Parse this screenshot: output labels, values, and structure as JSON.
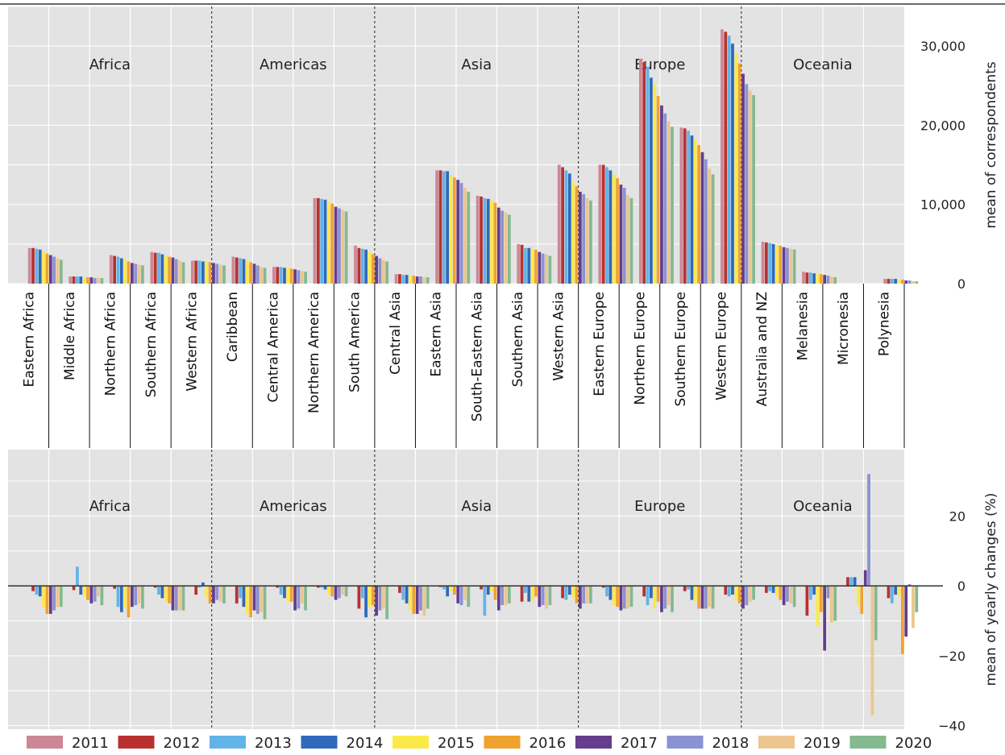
{
  "chart_data": [
    {
      "type": "bar",
      "title": "",
      "ylabel": "mean of correspondents",
      "ylim": [
        0,
        35000
      ],
      "yticks": [
        0,
        10000,
        20000,
        30000
      ],
      "ytick_labels": [
        "0",
        "10,000",
        "20,000",
        "30,000"
      ],
      "grid": true,
      "region_labels": [
        "Africa",
        "Americas",
        "Asia",
        "Europe",
        "Oceania"
      ],
      "categories": [
        "Eastern Africa",
        "Middle Africa",
        "Northern Africa",
        "Southern Africa",
        "Western Africa",
        "Caribbean",
        "Central America",
        "Northern America",
        "South America",
        "Central Asia",
        "Eastern Asia",
        "South-Eastern Asia",
        "Southern Asia",
        "Western Asia",
        "Eastern Europe",
        "Northern Europe",
        "Southern Europe",
        "Western Europe",
        "Australia and NZ",
        "Melanesia",
        "Micronesia",
        "Polynesia"
      ],
      "series": [
        {
          "name": "2011",
          "values": [
            4500,
            900,
            3600,
            4000,
            2900,
            3400,
            2100,
            10800,
            4800,
            1200,
            14300,
            11100,
            5000,
            15000,
            15000,
            28400,
            19700,
            32100,
            5300,
            1500,
            0,
            600
          ]
        },
        {
          "name": "2012",
          "values": [
            4500,
            900,
            3500,
            3900,
            2900,
            3300,
            2100,
            10800,
            4500,
            1200,
            14300,
            11000,
            4900,
            14700,
            15000,
            28000,
            19600,
            31800,
            5200,
            1400,
            0,
            600
          ]
        },
        {
          "name": "2013",
          "values": [
            4400,
            900,
            3400,
            3900,
            2900,
            3200,
            2100,
            10700,
            4400,
            1100,
            14200,
            10800,
            4500,
            14300,
            14700,
            27400,
            19300,
            31300,
            5100,
            1400,
            0,
            600
          ]
        },
        {
          "name": "2014",
          "values": [
            4300,
            900,
            3200,
            3700,
            2800,
            3100,
            2000,
            10600,
            4300,
            1100,
            14200,
            10700,
            4500,
            13900,
            14300,
            26000,
            18700,
            30300,
            5000,
            1300,
            0,
            600
          ]
        },
        {
          "name": "2015",
          "values": [
            4000,
            800,
            3000,
            3500,
            2800,
            2900,
            2000,
            10300,
            4000,
            1000,
            13700,
            10500,
            4400,
            12800,
            13800,
            25200,
            18100,
            29100,
            4900,
            1200,
            0,
            500
          ]
        },
        {
          "name": "2016",
          "values": [
            3800,
            800,
            2800,
            3400,
            2700,
            2700,
            1900,
            10100,
            3700,
            1000,
            13400,
            10200,
            4300,
            12300,
            13300,
            23700,
            17500,
            27800,
            4800,
            1200,
            0,
            500
          ]
        },
        {
          "name": "2017",
          "values": [
            3600,
            800,
            2600,
            3300,
            2600,
            2500,
            1800,
            9700,
            3500,
            900,
            13100,
            9600,
            4000,
            11600,
            12500,
            22500,
            16600,
            26500,
            4600,
            1100,
            0,
            400
          ]
        },
        {
          "name": "2018",
          "values": [
            3400,
            700,
            2500,
            3100,
            2500,
            2300,
            1700,
            9500,
            3200,
            900,
            12700,
            9200,
            3800,
            11300,
            12100,
            21500,
            15700,
            25200,
            4500,
            1000,
            0,
            400
          ]
        },
        {
          "name": "2019",
          "values": [
            3200,
            700,
            2400,
            2900,
            2400,
            2100,
            1600,
            9300,
            3000,
            800,
            12100,
            9000,
            3700,
            10800,
            11200,
            20500,
            14500,
            24400,
            4400,
            900,
            0,
            300
          ]
        },
        {
          "name": "2020",
          "values": [
            3000,
            700,
            2300,
            2700,
            2300,
            2000,
            1500,
            9100,
            2800,
            800,
            11600,
            8700,
            3500,
            10500,
            10800,
            19800,
            13800,
            23800,
            4300,
            800,
            0,
            300
          ]
        }
      ]
    },
    {
      "type": "bar",
      "title": "",
      "ylabel": "mean of yearly changes (%)",
      "ylim": [
        -41,
        39
      ],
      "yticks": [
        -40,
        -20,
        0,
        20
      ],
      "ytick_labels": [
        "−40",
        "−20",
        "0",
        "20"
      ],
      "grid": true,
      "region_labels": [
        "Africa",
        "Americas",
        "Asia",
        "Europe",
        "Oceania"
      ],
      "categories": [
        "Eastern Africa",
        "Middle Africa",
        "Northern Africa",
        "Southern Africa",
        "Western Africa",
        "Caribbean",
        "Central America",
        "Northern America",
        "South America",
        "Central Asia",
        "Eastern Asia",
        "South-Eastern Asia",
        "Southern Asia",
        "Western Asia",
        "Eastern Europe",
        "Northern Europe",
        "Southern Europe",
        "Western Europe",
        "Australia and NZ",
        "Melanesia",
        "Micronesia",
        "Polynesia"
      ],
      "series": [
        {
          "name": "2012",
          "values": [
            -1.5,
            -1.2,
            -0.8,
            -0.5,
            -2.5,
            -5,
            -0.5,
            -0.5,
            -6.5,
            -2,
            -0.3,
            -1,
            -4.5,
            -3.5,
            -0.5,
            -3,
            -1.5,
            -2.5,
            -2,
            -8.5,
            2.5,
            -3.5
          ]
        },
        {
          "name": "2013",
          "values": [
            -2.5,
            5.5,
            -6,
            -2.5,
            -0.5,
            -3.5,
            -2.5,
            -0.5,
            -3.5,
            -4,
            -1,
            -8.5,
            -2,
            -4,
            -3,
            -5.5,
            -1,
            -3,
            -1.5,
            -4,
            2.5,
            -5
          ]
        },
        {
          "name": "2014",
          "values": [
            -3,
            -2.5,
            -7.5,
            -3.5,
            1,
            -6,
            -3.5,
            -1,
            -9,
            -5,
            -3,
            -2.5,
            -4.5,
            -2.5,
            -4,
            -3.5,
            -4,
            -2.5,
            -2,
            -2.5,
            2.5,
            -2.5
          ]
        },
        {
          "name": "2015",
          "values": [
            -6,
            -3,
            -6.5,
            -4.5,
            -3.5,
            -8,
            -4.5,
            -2.5,
            -6,
            -7,
            -1.5,
            -1.5,
            -4.5,
            -3.5,
            -5.5,
            -6.5,
            -4.5,
            -4,
            -3,
            -11.5,
            -5.5,
            -3
          ]
        },
        {
          "name": "2016",
          "values": [
            -8,
            -4,
            -9,
            -5,
            -5,
            -9,
            -4.5,
            -3,
            -5.5,
            -8,
            -2.5,
            -4,
            -3,
            -5,
            -6,
            -4.5,
            -6.5,
            -5,
            -4,
            -7.5,
            -8,
            -19.5
          ]
        },
        {
          "name": "2017",
          "values": [
            -8,
            -5,
            -6,
            -7,
            -5,
            -7,
            -7,
            -4,
            -8.5,
            -8,
            -5,
            -7,
            -6,
            -6.5,
            -7,
            -7.5,
            -6.5,
            -6.5,
            -5.5,
            -18.5,
            4.5,
            -14.5
          ]
        },
        {
          "name": "2018",
          "values": [
            -7,
            -4.5,
            -5.5,
            -7,
            -4,
            -8,
            -6.5,
            -3.5,
            -7,
            -7,
            -5.5,
            -5.5,
            -5.5,
            -5,
            -6.5,
            -6.5,
            -6.5,
            -5.5,
            -4.5,
            -3.5,
            32,
            0.5
          ]
        },
        {
          "name": "2019",
          "values": [
            -6,
            -3,
            -5,
            -7,
            -4.5,
            -7.5,
            -5,
            -2.5,
            -6.5,
            -8.5,
            -4,
            -5.5,
            -6.5,
            -5,
            -6.5,
            -5.5,
            -6,
            -4.5,
            -5,
            -10.5,
            -37,
            -12
          ]
        },
        {
          "name": "2020",
          "values": [
            -6,
            -5.5,
            -6.5,
            -7,
            -5,
            -9.5,
            -7,
            -3,
            -9.5,
            -6.5,
            -6,
            -5,
            -5.5,
            -5,
            -6,
            -7.5,
            -6.5,
            -4,
            -6,
            -10,
            -15.5,
            -7.5
          ]
        }
      ]
    }
  ],
  "legend": {
    "items": [
      {
        "label": "2011",
        "color": "#cc8896"
      },
      {
        "label": "2012",
        "color": "#b8312f"
      },
      {
        "label": "2013",
        "color": "#62b4e8"
      },
      {
        "label": "2014",
        "color": "#3068bd"
      },
      {
        "label": "2015",
        "color": "#fbe94a"
      },
      {
        "label": "2016",
        "color": "#f0a22e"
      },
      {
        "label": "2017",
        "color": "#643d8c"
      },
      {
        "label": "2018",
        "color": "#8a92d2"
      },
      {
        "label": "2019",
        "color": "#ecc68e"
      },
      {
        "label": "2020",
        "color": "#85b98f"
      }
    ]
  }
}
